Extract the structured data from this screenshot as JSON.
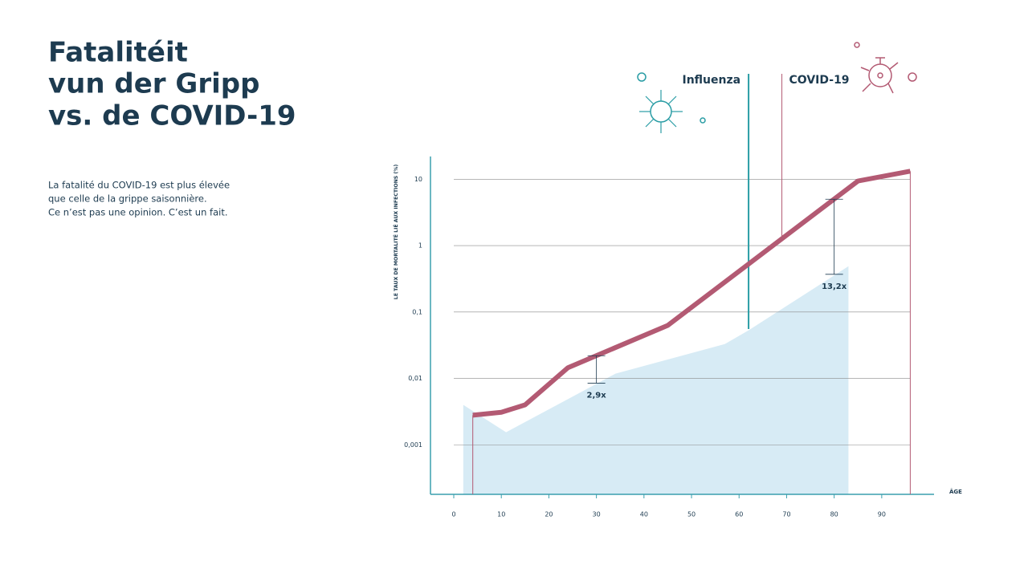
{
  "title": [
    "Fatalitéit",
    "vun der Gripp",
    "vs. de COVID-19"
  ],
  "text": [
    "La fatalité du COVID-19 est plus élevée",
    "que celle de la grippe saisonnière.",
    "Ce n’est pas une opinion. C’est un fait."
  ],
  "chart_data": {
    "type": "line",
    "y_label": "LE TAUX DE MORTALITÉ LIÉ AUX INFECTIONS (%)",
    "x_label": "ÂGE",
    "log_y": true,
    "grid": true,
    "xlim": [
      0,
      101
    ],
    "ylim": [
      0.00018,
      22
    ],
    "xticks": [
      0,
      10,
      20,
      30,
      40,
      50,
      60,
      70,
      80,
      90
    ],
    "yticks": [
      {
        "value": 0.001,
        "label": "0,001"
      },
      {
        "value": 0.01,
        "label": "0,01"
      },
      {
        "value": 0.1,
        "label": "0,1"
      },
      1,
      10
    ],
    "series": [
      {
        "name": "COVID-19",
        "color": "#b35a73",
        "kind": "line",
        "x": [
          4,
          10,
          15,
          24,
          45,
          85,
          96
        ],
        "values": [
          0.0028,
          0.0031,
          0.004,
          0.0145,
          0.063,
          9.4,
          13.2
        ]
      },
      {
        "name": "Influenza",
        "color": "#d7ebf5",
        "kind": "area",
        "x": [
          2,
          11,
          34,
          57,
          62,
          83
        ],
        "values": [
          0.004,
          0.00155,
          0.0118,
          0.033,
          0.053,
          0.49
        ]
      }
    ],
    "markers": [
      {
        "label": "Influenza",
        "x": 62,
        "color": "#2a9da5"
      },
      {
        "label": "COVID-19",
        "x": 69,
        "color": "#b35a73"
      }
    ],
    "annotations": [
      {
        "text": "2,9x",
        "x": 30,
        "low": 0.0085,
        "high": 0.022
      },
      {
        "text": "13,2x",
        "x": 80,
        "low": 0.37,
        "high": 5.0
      }
    ]
  }
}
